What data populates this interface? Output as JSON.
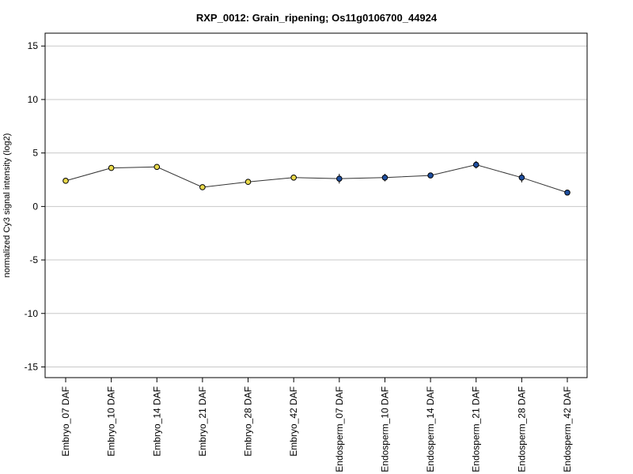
{
  "chart_data": {
    "type": "line",
    "title": "RXP_0012: Grain_ripening; Os11g0106700_44924",
    "xlabel": "",
    "ylabel": "normalized Cy3 signal intensity (log2)",
    "ylim": [
      -16,
      16.2
    ],
    "yticks": [
      -15,
      -10,
      -5,
      0,
      5,
      10,
      15
    ],
    "grid": true,
    "categories": [
      "Embryo_07 DAF",
      "Embryo_10 DAF",
      "Embryo_14 DAF",
      "Embryo_21 DAF",
      "Embryo_28 DAF",
      "Embryo_42 DAF",
      "Endosperm_07 DAF",
      "Endosperm_10 DAF",
      "Endosperm_14 DAF",
      "Endosperm_21 DAF",
      "Endosperm_28 DAF",
      "Endosperm_42 DAF"
    ],
    "series": [
      {
        "values": [
          2.4,
          3.6,
          3.7,
          1.8,
          2.3,
          2.7,
          2.6,
          2.7,
          2.9,
          3.9,
          2.7,
          1.3
        ],
        "errors": [
          0.15,
          0.2,
          0.15,
          0.15,
          0.25,
          0.15,
          0.45,
          0.35,
          0.15,
          0.35,
          0.45,
          0.1
        ],
        "colors": [
          "#e8d84a",
          "#e8d84a",
          "#e8d84a",
          "#e8d84a",
          "#e8d84a",
          "#e8d84a",
          "#1f4fa0",
          "#1f4fa0",
          "#1f4fa0",
          "#1f4fa0",
          "#1f4fa0",
          "#1f4fa0"
        ]
      }
    ],
    "colors": {
      "line": "#333333",
      "grid": "#c8c8c8",
      "frame": "#000000",
      "point_stroke": "#000000"
    }
  }
}
